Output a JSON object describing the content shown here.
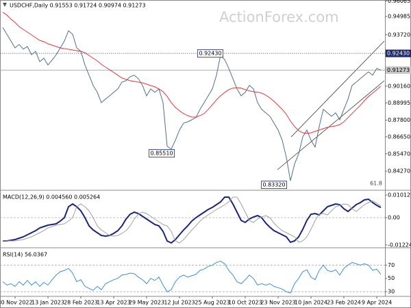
{
  "chart_data": [
    {
      "type": "line",
      "title": "USDCHF,Daily  0.91553 0.91724 0.90974 0.91273",
      "watermark": "ActionForex.com",
      "categories": [
        null,
        null,
        null,
        "30 Nov 2022",
        null,
        null,
        null,
        null,
        null,
        null,
        null,
        "13 Jan 2023",
        null,
        null,
        null,
        null,
        null,
        null,
        null,
        "28 Feb 2023",
        null,
        null,
        null,
        null,
        null,
        null,
        null,
        "13 Apr 2023",
        null,
        null,
        null,
        null,
        null,
        null,
        null,
        "29 May 2023",
        null,
        null,
        null,
        null,
        null,
        null,
        null,
        "12 Jul 2023",
        null,
        null,
        null,
        null,
        null,
        null,
        null,
        "25 Aug 2023",
        null,
        null,
        null,
        null,
        null,
        null,
        null,
        "10 Oct 2023",
        null,
        null,
        null,
        null,
        null,
        null,
        null,
        "23 Nov 2023",
        null,
        null,
        null,
        null,
        null,
        null,
        null,
        "10 Jan 2024",
        null,
        null,
        null,
        null,
        null,
        null,
        null,
        "23 Feb 2024",
        null,
        null,
        null,
        null,
        null,
        null,
        null,
        "9 Apr 2024",
        null
      ],
      "series": [
        {
          "color": "#4f6f88",
          "values": [
            0.9423,
            0.9376,
            0.9329,
            0.9281,
            0.9305,
            0.9272,
            0.9291,
            0.9234,
            0.9258,
            0.9186,
            0.921,
            0.9163,
            0.9196,
            0.9234,
            0.9281,
            0.9329,
            0.94,
            0.9376,
            0.9281,
            0.9258,
            0.9163,
            0.9092,
            0.9021,
            0.8973,
            0.8902,
            0.8926,
            0.8949,
            0.8973,
            0.8997,
            0.9044,
            0.9054,
            0.9082,
            0.9092,
            0.9068,
            0.9021,
            0.8949,
            0.8997,
            0.8973,
            0.8997,
            0.8902,
            0.86,
            0.858,
            0.8641,
            0.8712,
            0.876,
            0.8769,
            0.8783,
            0.8798,
            0.8855,
            0.8902,
            0.8949,
            0.8997,
            0.9092,
            0.923,
            0.92,
            0.9139,
            0.9068,
            0.8997,
            0.8949,
            0.8973,
            0.9021,
            0.8997,
            0.8902,
            0.8855,
            0.8831,
            0.8807,
            0.876,
            0.8712,
            0.8641,
            0.8523,
            0.836,
            0.8476,
            0.8547,
            0.8665,
            0.8712,
            0.8641,
            0.8594,
            0.8736,
            0.8855,
            0.8831,
            0.8807,
            0.8831,
            0.8783,
            0.8855,
            0.8926,
            0.9021,
            0.9044,
            0.9068,
            0.9092,
            0.9115,
            0.9092,
            0.9139,
            0.9127
          ]
        },
        {
          "color": "#e03a3a",
          "values": [
            0.9528,
            0.9509,
            0.948,
            0.9457,
            0.9428,
            0.9409,
            0.939,
            0.9371,
            0.9352,
            0.9333,
            0.9324,
            0.931,
            0.93,
            0.9291,
            0.9281,
            0.9276,
            0.9272,
            0.9267,
            0.9262,
            0.9258,
            0.9248,
            0.9229,
            0.921,
            0.9191,
            0.9167,
            0.9148,
            0.913,
            0.9111,
            0.9092,
            0.9073,
            0.9063,
            0.9054,
            0.9049,
            0.9044,
            0.9039,
            0.903,
            0.902,
            0.9011,
            0.8997,
            0.8978,
            0.8945,
            0.8902,
            0.8869,
            0.8845,
            0.8826,
            0.8812,
            0.8802,
            0.8802,
            0.8812,
            0.8826,
            0.8855,
            0.8888,
            0.8921,
            0.8949,
            0.8973,
            0.8992,
            0.9002,
            0.9006,
            0.9002,
            0.8992,
            0.8983,
            0.8978,
            0.8973,
            0.8968,
            0.8954,
            0.8935,
            0.8911,
            0.8883,
            0.8855,
            0.8821,
            0.8774,
            0.8736,
            0.8708,
            0.8693,
            0.8689,
            0.8693,
            0.8703,
            0.8712,
            0.8722,
            0.8731,
            0.8736,
            0.8741,
            0.875,
            0.8769,
            0.8798,
            0.8826,
            0.8855,
            0.8883,
            0.8916,
            0.8945,
            0.8968,
            0.8992,
            0.9016
          ]
        }
      ],
      "ylim": [
        0.8304,
        0.9613
      ],
      "yticks": [
        0.96065,
        0.94985,
        {
          "value": 0.9372,
          "label": "0.93720"
        },
        {
          "value": 0.9016,
          "label": "0.90160"
        },
        0.88995,
        {
          "value": 0.878,
          "label": "0.87800"
        },
        {
          "value": 0.8665,
          "label": "0.86650"
        },
        {
          "value": 0.8547,
          "label": "0.85470"
        },
        {
          "value": 0.8427,
          "label": "0.84270"
        }
      ],
      "levels": [
        {
          "value": 0.9243,
          "label": "0.92430"
        },
        0.91273
      ],
      "annotations": [
        {
          "text": "0.92430",
          "value": 0.9243
        },
        {
          "text": "0.85510",
          "value": 0.8551
        },
        {
          "text": "0.83320",
          "value": 0.8332
        },
        {
          "text": "61.8"
        }
      ]
    },
    {
      "type": "line",
      "title": "MACD(12,26,9) 0.004560 0.005264",
      "series": [
        {
          "color": "#1a237e",
          "values": [
            -0.01044,
            -0.01044,
            -0.01013,
            -0.00982,
            -0.00921,
            -0.0086,
            -0.00768,
            -0.00675,
            -0.00583,
            -0.00461,
            -0.00399,
            -0.00338,
            -0.00307,
            -0.00276,
            -0.00154,
            0,
            0.00491,
            0.00614,
            0.00491,
            0.00307,
            0,
            -0.00368,
            -0.00553,
            -0.00675,
            -0.00798,
            -0.00829,
            -0.00798,
            -0.00706,
            -0.00583,
            -0.00368,
            -0.00061,
            0.00154,
            0.00246,
            0.00184,
            0.00061,
            -0.00061,
            -0.00184,
            -0.00307,
            -0.00368,
            -0.00614,
            -0.01044,
            -0.01136,
            -0.00982,
            -0.00768,
            -0.00553,
            -0.00368,
            -0.00154,
            0,
            0.00123,
            0.00246,
            0.00368,
            0.00461,
            0.00583,
            0.00706,
            0.00921,
            0.00921,
            0.00614,
            0.00246,
            -0.00123,
            -0.00215,
            -0.00061,
            0.00031,
            0.00092,
            0,
            -0.00246,
            -0.0043,
            -0.00583,
            -0.00675,
            -0.00768,
            -0.0086,
            -0.01105,
            -0.01044,
            -0.0086,
            -0.00522,
            -0.00123,
            0.00154,
            0.00184,
            0.00123,
            0.00307,
            0.00491,
            0.00553,
            0.00614,
            0.00583,
            0.00399,
            0.00276,
            0.0043,
            0.00583,
            0.00675,
            0.00798,
            0.00829,
            0.00675,
            0.00553,
            0.00456
          ]
        },
        {
          "color": "#a0a0a0",
          "values": [
            -0.01044,
            -0.01044,
            -0.01044,
            -0.01044,
            -0.01013,
            -0.00982,
            -0.00921,
            -0.0086,
            -0.00768,
            -0.00675,
            -0.00583,
            -0.00461,
            -0.00399,
            -0.00338,
            -0.00307,
            -0.00276,
            -0.00154,
            0,
            0.00491,
            0.00614,
            0.00491,
            0.00307,
            0,
            -0.00368,
            -0.00553,
            -0.00675,
            -0.00798,
            -0.00829,
            -0.00798,
            -0.00706,
            -0.00583,
            -0.00368,
            -0.00061,
            0.00154,
            0.00246,
            0.00184,
            0.00061,
            -0.00061,
            -0.00184,
            -0.00307,
            -0.00368,
            -0.00614,
            -0.01044,
            -0.01136,
            -0.00982,
            -0.00768,
            -0.00553,
            -0.00368,
            -0.00154,
            0,
            0.00123,
            0.00246,
            0.00368,
            0.00461,
            0.00583,
            0.00706,
            0.00921,
            0.00921,
            0.00614,
            0.00246,
            -0.00123,
            -0.00215,
            -0.00061,
            0.00031,
            0.00092,
            0,
            -0.00246,
            -0.0043,
            -0.00583,
            -0.00675,
            -0.00768,
            -0.0086,
            -0.01105,
            -0.01044,
            -0.0086,
            -0.00522,
            -0.00123,
            0.00154,
            0.00184,
            0.00123,
            0.00307,
            0.00491,
            0.00553,
            0.00614,
            0.00583,
            0.00399,
            0.00276,
            0.0043,
            0.00583,
            0.00675,
            0.0076,
            0.0065,
            0.005264
          ]
        }
      ],
      "ylim": [
        -0.0129,
        0.01167
      ],
      "yticks": [
        0.010129,
        {
          "value": 0,
          "label": "0.00"
        },
        -0.012244
      ],
      "levels": [
        0
      ]
    },
    {
      "type": "line",
      "title": "RSI(14) 56.0367",
      "series": [
        {
          "color": "#3a8fd8",
          "values": [
            45,
            40,
            42,
            38,
            45,
            40,
            47,
            40,
            45,
            38,
            44,
            40,
            48,
            55,
            60,
            62,
            65,
            58,
            45,
            48,
            38,
            35,
            32,
            38,
            33,
            42,
            45,
            48,
            50,
            55,
            56,
            58,
            57,
            52,
            48,
            42,
            50,
            47,
            52,
            40,
            30,
            33,
            45,
            52,
            55,
            52,
            54,
            56,
            62,
            64,
            68,
            70,
            74,
            76,
            72,
            62,
            55,
            45,
            42,
            48,
            55,
            50,
            40,
            42,
            40,
            42,
            38,
            36,
            34,
            30,
            28,
            42,
            50,
            60,
            63,
            52,
            48,
            62,
            70,
            62,
            60,
            63,
            55,
            65,
            70,
            74,
            72,
            70,
            72,
            70,
            62,
            64,
            56.0367
          ]
        }
      ],
      "ylim": [
        24,
        94
      ],
      "yticks": [
        70,
        50,
        30
      ],
      "levels": [
        70,
        30
      ]
    }
  ]
}
